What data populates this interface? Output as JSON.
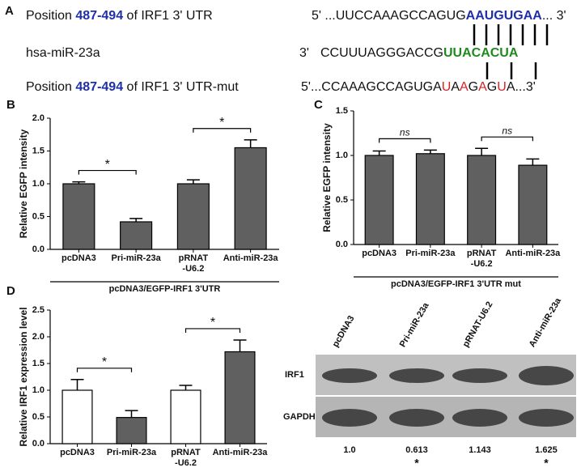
{
  "panel_a": {
    "label": "A",
    "rows": [
      {
        "name": [
          {
            "text": "Position "
          },
          {
            "text": "487-494",
            "color": "#1f2fa8",
            "bold": true
          },
          {
            "text": " of  IRF1 3' UTR"
          }
        ],
        "strand": [
          {
            "text": "5' ...UUCCAAAGCCAGUG"
          },
          {
            "text": "AAUGUGAA",
            "color": "#1f2fa8",
            "bold": true
          },
          {
            "text": "... 3'"
          }
        ]
      },
      {
        "name": [
          {
            "text": "hsa-miR-23a"
          }
        ],
        "strand": [
          {
            "text": "3'"
          },
          {
            "text": "CCUUUAGGGACCG"
          },
          {
            "text": "UUACACUA",
            "color": "#1e8a1e",
            "bold": true
          }
        ]
      },
      {
        "name": [
          {
            "text": "Position "
          },
          {
            "text": "487-494",
            "color": "#1f2fa8",
            "bold": true
          },
          {
            "text": " of  IRF1 3' UTR-mut"
          }
        ],
        "strand": [
          {
            "text": "5'...CCAAAGCCAGUGA"
          },
          {
            "text": "U",
            "color": "#e02020"
          },
          {
            "text": "A"
          },
          {
            "text": "A",
            "color": "#e02020"
          },
          {
            "text": "G"
          },
          {
            "text": "A",
            "color": "#e02020"
          },
          {
            "text": "G"
          },
          {
            "text": "U",
            "color": "#e02020"
          },
          {
            "text": "A...3'"
          }
        ]
      }
    ]
  },
  "chart_data": [
    {
      "type": "bar",
      "panel": "B",
      "ylabel": "Relative EGFP intensity",
      "xlabel": "pcDNA3/EGFP-IRF1 3'UTR",
      "categories": [
        "pcDNA3",
        "Pri-miR-23a",
        "pRNAT\n-U6.2",
        "Anti-miR-23a"
      ],
      "values": [
        1.0,
        0.42,
        1.0,
        1.55
      ],
      "errors": [
        0.03,
        0.05,
        0.06,
        0.12
      ],
      "colors": [
        "#606060",
        "#606060",
        "#606060",
        "#606060"
      ],
      "ylim": [
        0,
        2
      ],
      "yticks": [
        {
          "value": 0,
          "label": "0.0"
        },
        {
          "value": 0.5,
          "label": "0.5"
        },
        {
          "value": 1,
          "label": "1.0"
        },
        {
          "value": 1.5,
          "label": "1.5"
        },
        {
          "value": 2,
          "label": "2.0"
        }
      ],
      "significance": [
        {
          "bars": [
            0,
            1
          ],
          "label": "*"
        },
        {
          "bars": [
            2,
            3
          ],
          "label": "*"
        }
      ]
    },
    {
      "type": "bar",
      "panel": "C",
      "ylabel": "Relative EGFP intensity",
      "xlabel": "pcDNA3/EGFP-IRF1 3'UTR mut",
      "categories": [
        "pcDNA3",
        "Pri-miR-23a",
        "pRNAT\n-U6.2",
        "Anti-miR-23a"
      ],
      "values": [
        1.0,
        1.02,
        1.0,
        0.89
      ],
      "errors": [
        0.05,
        0.04,
        0.08,
        0.07
      ],
      "colors": [
        "#606060",
        "#606060",
        "#606060",
        "#606060"
      ],
      "ylim": [
        0,
        1.5
      ],
      "yticks": [
        {
          "value": 0,
          "label": "0.0"
        },
        {
          "value": 0.5,
          "label": "0.5"
        },
        {
          "value": 1,
          "label": "1.0"
        },
        {
          "value": 1.5,
          "label": "1.5"
        }
      ],
      "significance": [
        {
          "bars": [
            0,
            1
          ],
          "label": "ns"
        },
        {
          "bars": [
            2,
            3
          ],
          "label": "ns"
        }
      ]
    },
    {
      "type": "bar",
      "panel": "D",
      "ylabel": "Relative IRF1 expression level",
      "categories": [
        "pcDNA3",
        "Pri-miR-23a",
        "pRNAT\n-U6.2",
        "Anti-miR-23a"
      ],
      "values": [
        1.0,
        0.49,
        1.0,
        1.72
      ],
      "errors": [
        0.2,
        0.13,
        0.09,
        0.22
      ],
      "colors": [
        "#ffffff",
        "#606060",
        "#ffffff",
        "#606060"
      ],
      "ylim": [
        0,
        2.5
      ],
      "yticks": [
        {
          "value": 0,
          "label": "0.0"
        },
        {
          "value": 0.5,
          "label": "0.5"
        },
        {
          "value": 1,
          "label": "1.0"
        },
        {
          "value": 1.5,
          "label": "1.5"
        },
        {
          "value": 2,
          "label": "2.0"
        },
        {
          "value": 2.5,
          "label": "2.5"
        }
      ],
      "significance": [
        {
          "bars": [
            0,
            1
          ],
          "label": "*"
        },
        {
          "bars": [
            2,
            3
          ],
          "label": "*"
        }
      ]
    }
  ],
  "blot": {
    "columns": [
      "pcDNA3",
      "Pri-miR-23a",
      "pRNAT-U6.2",
      "Anti-miR-23a"
    ],
    "rows": [
      "IRF1",
      "GAPDH"
    ],
    "quantification": [
      "1.0",
      "0.613",
      "1.143",
      "1.625"
    ],
    "significance": [
      null,
      "*",
      null,
      "*"
    ]
  }
}
